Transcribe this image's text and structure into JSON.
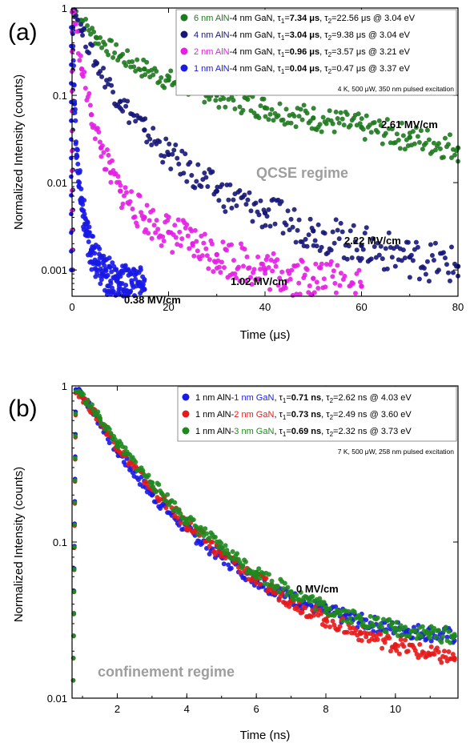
{
  "chart_data": [
    {
      "type": "scatter",
      "panel_label": "(a)",
      "xlabel": "Time (μs)",
      "ylabel": "Normalized Intensity (counts)",
      "xlim": [
        0,
        80
      ],
      "ylim": [
        0.0005,
        1
      ],
      "y_scale": "log",
      "x_ticks": [
        0,
        20,
        40,
        60,
        80
      ],
      "y_ticks": [
        {
          "value": 1,
          "label": "1"
        },
        {
          "value": 0.1,
          "label": "0.1"
        },
        {
          "value": 0.01,
          "label": "0.01"
        },
        {
          "value": 0.001,
          "label": "0.001"
        }
      ],
      "legend_position": "top-right",
      "conditions": "4 K, 500 μW, 350 nm pulsed excitation",
      "regime_label": "QCSE regime",
      "series": [
        {
          "color": "#1e7a1e",
          "legend": {
            "a": "6 nm AlN",
            "b": "-4 nm GaN, τ",
            "t1": "7.34 μs",
            "t2": "=22.56 μs @ 3.04 eV"
          },
          "field": "2.61 MV/cm",
          "x": [
            0.5,
            2,
            5,
            10,
            15,
            20,
            30,
            40,
            50,
            60,
            70,
            80
          ],
          "y": [
            0.95,
            0.72,
            0.46,
            0.28,
            0.2,
            0.15,
            0.1,
            0.072,
            0.055,
            0.043,
            0.033,
            0.025
          ]
        },
        {
          "color": "#17177a",
          "legend": {
            "a": "4 nm AlN",
            "b": "-4 nm GaN, τ",
            "t1": "3.04 μs",
            "t2": "=9.38 μs @ 3.04 eV"
          },
          "field": "2.22 MV/cm",
          "x": [
            0.5,
            2,
            5,
            10,
            15,
            20,
            30,
            40,
            50,
            60,
            70,
            80
          ],
          "y": [
            0.95,
            0.55,
            0.23,
            0.085,
            0.04,
            0.021,
            0.008,
            0.0045,
            0.0028,
            0.0019,
            0.0014,
            0.0011
          ]
        },
        {
          "color": "#e61ee6",
          "legend": {
            "a": "2 nm AlN",
            "b": "-4 nm GaN, τ",
            "t1": "0.96 μs",
            "t2": "=3.57 μs @ 3.21 eV"
          },
          "field": "1.02 MV/cm",
          "x": [
            0.3,
            2,
            4,
            6,
            8,
            10,
            15,
            20,
            25,
            30,
            40,
            50,
            60
          ],
          "y": [
            0.9,
            0.2,
            0.06,
            0.025,
            0.013,
            0.008,
            0.004,
            0.0027,
            0.002,
            0.0015,
            0.001,
            0.0008,
            0.00065
          ]
        },
        {
          "color": "#1a1ae6",
          "legend": {
            "a": "1 nm AlN",
            "b": "-4 nm GaN, τ",
            "t1": "0.04 μs",
            "t2": "=0.47 μs @ 3.37 eV"
          },
          "field": "0.38 MV/cm",
          "x": [
            0.15,
            0.5,
            1,
            2,
            3,
            4,
            5,
            7,
            10,
            15
          ],
          "y": [
            0.6,
            0.08,
            0.02,
            0.006,
            0.0028,
            0.0017,
            0.0012,
            0.00085,
            0.0007,
            0.0006
          ]
        }
      ],
      "annotations": {
        "green_field": "2.61 MV/cm",
        "navy_field": "2.22 MV/cm",
        "magenta_field": "1.02 MV/cm",
        "blue_field": "0.38 MV/cm"
      }
    },
    {
      "type": "scatter",
      "panel_label": "(b)",
      "xlabel": "Time (ns)",
      "ylabel": "Normalized Intensity (counts)",
      "xlim": [
        0.7,
        11.8
      ],
      "ylim": [
        0.01,
        1
      ],
      "y_scale": "log",
      "x_ticks": [
        2,
        4,
        6,
        8,
        10
      ],
      "y_ticks": [
        {
          "value": 1,
          "label": "1"
        },
        {
          "value": 0.1,
          "label": "0.1"
        },
        {
          "value": 0.01,
          "label": "0.01"
        }
      ],
      "legend_position": "top-right",
      "conditions": "7 K, 500 μW, 258 nm pulsed excitation",
      "regime_label": "confinement regime",
      "field_label": "0 MV/cm",
      "series": [
        {
          "color": "#1a1ae6",
          "legend": {
            "a": "1 nm AlN-",
            "b": "1 nm GaN",
            "c": ", τ",
            "t1": "0.71 ns",
            "t2": "=2.62 ns @ 4.03 eV"
          },
          "x": [
            0.9,
            1.5,
            2,
            3,
            4,
            5,
            6,
            7,
            8,
            9,
            10,
            11,
            11.7
          ],
          "y": [
            0.95,
            0.58,
            0.38,
            0.2,
            0.12,
            0.08,
            0.057,
            0.044,
            0.036,
            0.031,
            0.028,
            0.026,
            0.025
          ]
        },
        {
          "color": "#e61a1a",
          "legend": {
            "a": "1 nm AlN-",
            "b": "2 nm GaN",
            "c": ", τ",
            "t1": "0.73 ns",
            "t2": "=2.49 ns @ 3.60 eV"
          },
          "x": [
            0.9,
            1.5,
            2,
            3,
            4,
            5,
            6,
            7,
            8,
            9,
            10,
            11,
            11.7
          ],
          "y": [
            0.9,
            0.6,
            0.41,
            0.22,
            0.13,
            0.085,
            0.058,
            0.042,
            0.032,
            0.026,
            0.022,
            0.019,
            0.018
          ]
        },
        {
          "color": "#1e8a1e",
          "legend": {
            "a": "1 nm AlN-",
            "b": "3 nm GaN",
            "c": ", τ",
            "t1": "0.69 ns",
            "t2": "=2.32 ns @ 3.73 eV"
          },
          "x": [
            0.9,
            1.5,
            2,
            3,
            4,
            5,
            6,
            7,
            8,
            9,
            10,
            11,
            11.7
          ],
          "y": [
            0.92,
            0.62,
            0.43,
            0.24,
            0.14,
            0.092,
            0.064,
            0.048,
            0.038,
            0.032,
            0.028,
            0.026,
            0.025
          ]
        }
      ]
    }
  ]
}
